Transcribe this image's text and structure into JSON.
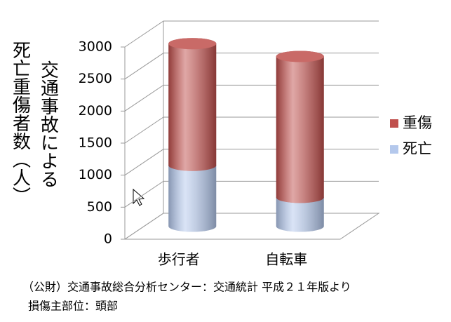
{
  "chart_data": {
    "type": "bar",
    "y_label": [
      "交通事故による",
      "死亡重傷者数（人）"
    ],
    "categories": [
      "歩行者",
      "自転車"
    ],
    "series": [
      {
        "name": "死亡",
        "color": "#b4c8ec",
        "values": [
          950,
          450
        ]
      },
      {
        "name": "重傷",
        "color": "#c0504d",
        "values": [
          1900,
          2200
        ]
      }
    ],
    "ylim": [
      0,
      3000
    ],
    "yticks": [
      0,
      500,
      1000,
      1500,
      2000,
      2500,
      3000
    ],
    "grid": true,
    "legend": "right"
  },
  "source": [
    "（公財）交通事故総合分析センター：交通統計 平成２１年版より",
    "損傷主部位：頭部"
  ]
}
